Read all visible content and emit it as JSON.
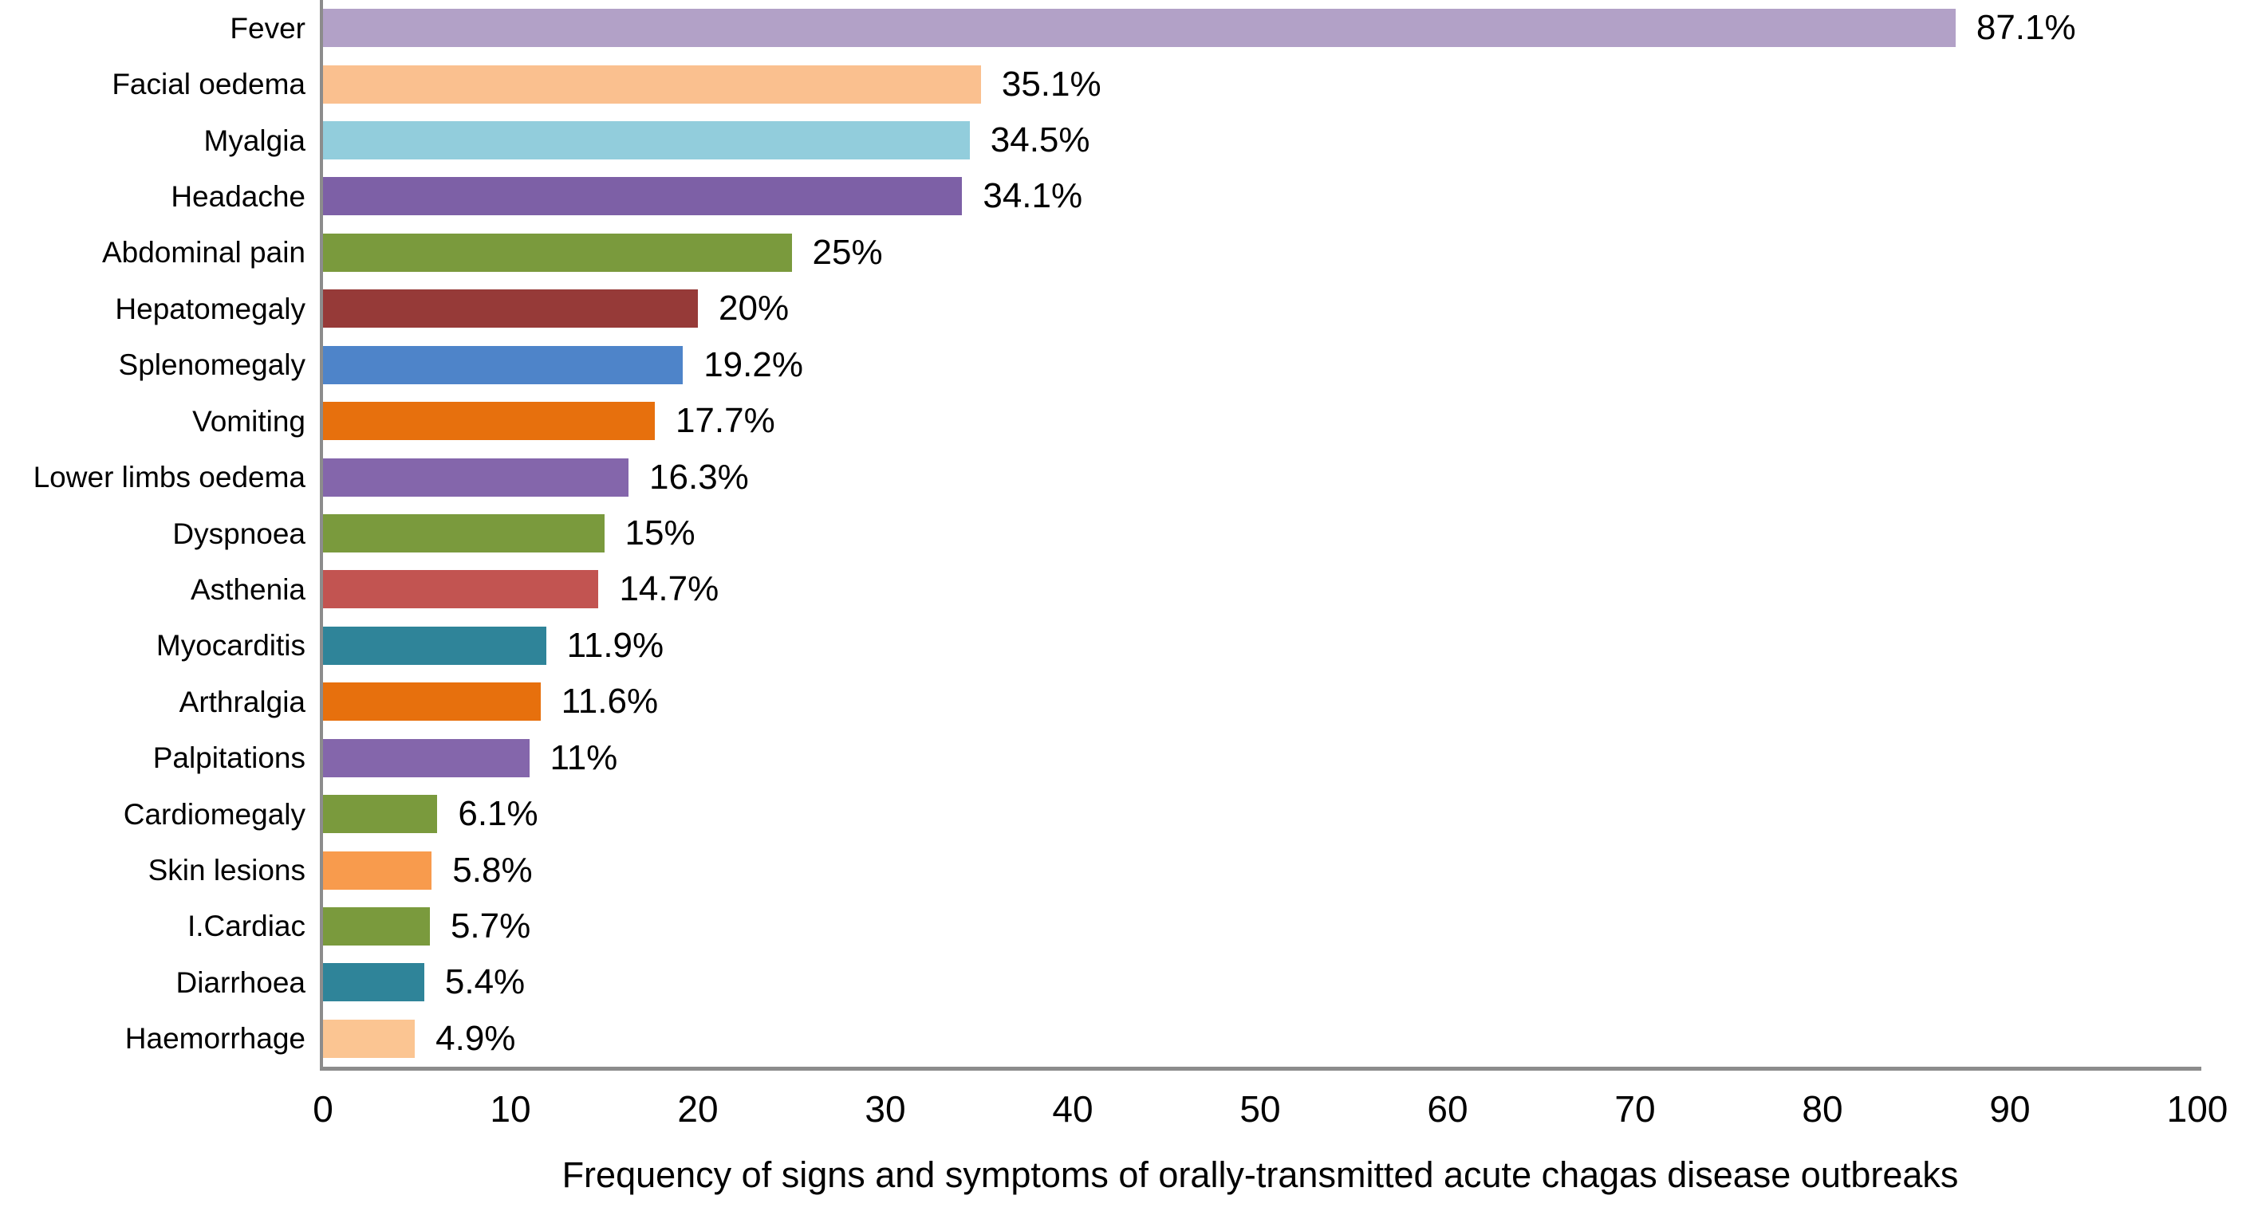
{
  "chart_data": {
    "type": "bar",
    "orientation": "horizontal",
    "title": "Frequency of signs and symptoms of orally-transmitted acute chagas disease outbreaks",
    "categories": [
      "Fever",
      "Facial oedema",
      "Myalgia",
      "Headache",
      "Abdominal pain",
      "Hepatomegaly",
      "Splenomegaly",
      "Vomiting",
      "Lower limbs oedema",
      "Dyspnoea",
      "Asthenia",
      "Myocarditis",
      "Arthralgia",
      "Palpitations",
      "Cardiomegaly",
      "Skin lesions",
      "I.Cardiac",
      "Diarrhoea",
      "Haemorrhage"
    ],
    "values": [
      87.1,
      35.1,
      34.5,
      34.1,
      25,
      20,
      19.2,
      17.7,
      16.3,
      15,
      14.7,
      11.9,
      11.6,
      11,
      6.1,
      5.8,
      5.7,
      5.4,
      4.9
    ],
    "value_labels": [
      "87.1%",
      "35.1%",
      "34.5%",
      "34.1%",
      "25%",
      "20%",
      "19.2%",
      "17.7%",
      "16.3%",
      "15%",
      "14.7%",
      "11.9%",
      "11.6%",
      "11%",
      "6.1%",
      "5.8%",
      "5.7%",
      "5.4%",
      "4.9%"
    ],
    "bar_colors": [
      "#b2a1c7",
      "#fac08f",
      "#92cddc",
      "#7d60a6",
      "#7a9a3d",
      "#963a38",
      "#4e84c9",
      "#e7700d",
      "#8466ab",
      "#7a9a3d",
      "#c25451",
      "#2f8499",
      "#e7700d",
      "#8466ab",
      "#7a9a3d",
      "#f89b4d",
      "#7a9a3d",
      "#2f8499",
      "#fbc592"
    ],
    "xlabel": "",
    "ylabel": "",
    "xlim": [
      0,
      100
    ],
    "x_ticks": [
      "0",
      "10",
      "20",
      "30",
      "40",
      "50",
      "60",
      "70",
      "80",
      "90",
      "100"
    ],
    "grid": false,
    "legend": false,
    "axis_color": "#8c8c8c",
    "text_color": "#000000",
    "background_color": "#ffffff"
  }
}
